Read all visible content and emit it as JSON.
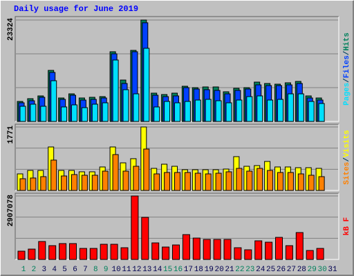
{
  "title": "Daily usage for June 2019",
  "chart_data": [
    {
      "type": "bar",
      "separator": "/",
      "separator_color": "#004060",
      "ylim": [
        0,
        24117
      ],
      "yticks": [
        23324
      ],
      "grid_divisions": 3,
      "series": [
        {
          "name": "Hits",
          "color": "#00805c",
          "values": [
            4602,
            5237,
            5872,
            11743,
            5396,
            6348,
            5396,
            5555,
            5713,
            16029,
            9522,
            16346,
            23324,
            6507,
            6189,
            6507,
            8094,
            7776,
            7935,
            7935,
            6824,
            7618,
            7776,
            9046,
            8729,
            8570,
            8887,
            9205,
            5872,
            5396,
            null
          ]
        },
        {
          "name": "Files",
          "color": "#0040ff",
          "values": [
            4285,
            4761,
            5554,
            11268,
            5078,
            6031,
            4920,
            5078,
            5396,
            15553,
            8729,
            16029,
            22694,
            6031,
            5713,
            5872,
            7776,
            7459,
            7300,
            7142,
            6348,
            7142,
            7459,
            8411,
            8252,
            8252,
            8411,
            8729,
            5396,
            4920,
            null
          ]
        },
        {
          "name": "Pages",
          "color": "#00e0ff",
          "values": [
            3491,
            3968,
            3491,
            9363,
            3333,
            3809,
            3174,
            3968,
            4285,
            14124,
            7300,
            6348,
            16822,
            3333,
            4602,
            4285,
            4602,
            4920,
            5078,
            4761,
            4285,
            4920,
            5713,
            5872,
            4920,
            5078,
            6348,
            6348,
            4602,
            4126,
            null
          ]
        }
      ]
    },
    {
      "type": "bar",
      "separator": "/",
      "separator_color": "#004060",
      "ylim": [
        0,
        1848
      ],
      "yticks": [
        1771
      ],
      "grid_divisions": 3,
      "series": [
        {
          "name": "Visits",
          "color": "#ffff00",
          "values": [
            462,
            558,
            558,
            1213,
            558,
            558,
            520,
            520,
            655,
            1213,
            770,
            886,
            1771,
            616,
            732,
            674,
            578,
            578,
            578,
            578,
            597,
            943,
            674,
            693,
            809,
            655,
            655,
            635,
            635,
            616,
            null
          ]
        },
        {
          "name": "Sites",
          "color": "#ff8000",
          "values": [
            327,
            347,
            385,
            847,
            404,
            443,
            424,
            424,
            539,
            1001,
            539,
            674,
            1155,
            462,
            501,
            501,
            501,
            481,
            462,
            481,
            520,
            616,
            539,
            616,
            558,
            501,
            501,
            462,
            424,
            385,
            null
          ]
        }
      ]
    },
    {
      "type": "bar",
      "ylim": [
        0,
        3033473
      ],
      "yticks": [
        2907078
      ],
      "grid_divisions": 3,
      "categories": [
        "1",
        "2",
        "3",
        "4",
        "5",
        "6",
        "7",
        "8",
        "9",
        "10",
        "11",
        "12",
        "13",
        "14",
        "15",
        "16",
        "17",
        "18",
        "19",
        "20",
        "21",
        "22",
        "23",
        "24",
        "25",
        "26",
        "27",
        "28",
        "29",
        "30",
        "31"
      ],
      "category_colors": [
        "#00805c",
        "#00805c",
        "#00004f",
        "#00004f",
        "#00004f",
        "#00004f",
        "#00004f",
        "#00805c",
        "#00805c",
        "#00004f",
        "#00004f",
        "#00004f",
        "#00004f",
        "#00004f",
        "#00805c",
        "#00805c",
        "#00004f",
        "#00004f",
        "#00004f",
        "#00004f",
        "#00004f",
        "#00805c",
        "#00805c",
        "#00004f",
        "#00004f",
        "#00004f",
        "#00004f",
        "#00004f",
        "#00805c",
        "#00805c",
        "#00004f"
      ],
      "series": [
        {
          "name": "kB F",
          "color": "#ff0000",
          "values": [
            379188,
            473985,
            821574,
            631980,
            726777,
            726777,
            505584,
            505584,
            695178,
            695178,
            537183,
            2907078,
            1927539,
            758376,
            568782,
            663579,
            1137564,
            979569,
            916371,
            916371,
            916371,
            537183,
            442386,
            853173,
            789975,
            1011168,
            631980,
            1232361,
            410787,
            505584,
            null
          ]
        }
      ]
    }
  ]
}
